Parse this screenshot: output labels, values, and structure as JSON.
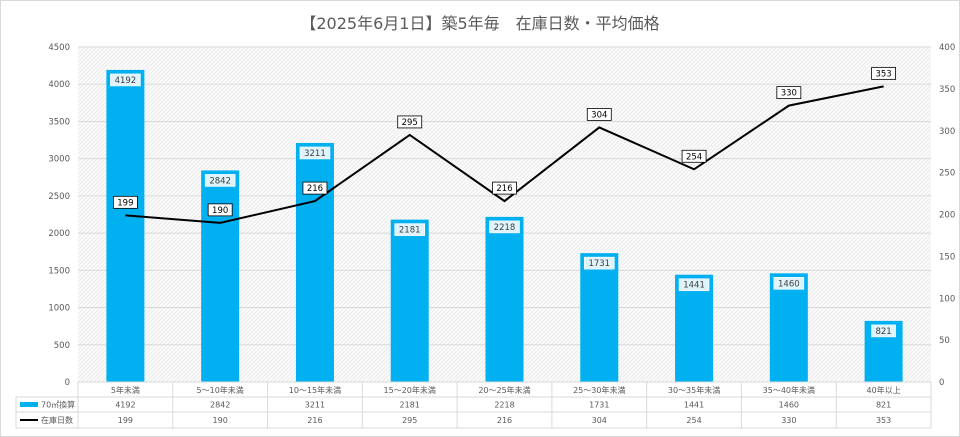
{
  "chart_data": {
    "type": "bar",
    "title": "【2025年6月1日】築5年毎　在庫日数・平均価格",
    "categories": [
      "5年未満",
      "5～10年未満",
      "10～15年未満",
      "15～20年未満",
      "20～25年未満",
      "25～30年未満",
      "30～35年未満",
      "35～40年未満",
      "40年以上"
    ],
    "series": [
      {
        "name": "70㎡換算",
        "type": "bar",
        "axis": "left",
        "color": "#00B0F0",
        "values": [
          4192,
          2842,
          3211,
          2181,
          2218,
          1731,
          1441,
          1460,
          821
        ]
      },
      {
        "name": "在庫日数",
        "type": "line",
        "axis": "right",
        "color": "#000000",
        "values": [
          199,
          190,
          216,
          295,
          216,
          304,
          254,
          330,
          353
        ]
      }
    ],
    "ylim_left": [
      0,
      4500
    ],
    "yticks_left": [
      "0",
      "500",
      "1000",
      "1500",
      "2000",
      "2500",
      "3000",
      "3500",
      "4000",
      "4500"
    ],
    "ylim_right": [
      0,
      400
    ],
    "yticks_right": [
      "0",
      "50",
      "100",
      "150",
      "200",
      "250",
      "300",
      "350",
      "400"
    ],
    "grid": true,
    "data_table": true
  }
}
